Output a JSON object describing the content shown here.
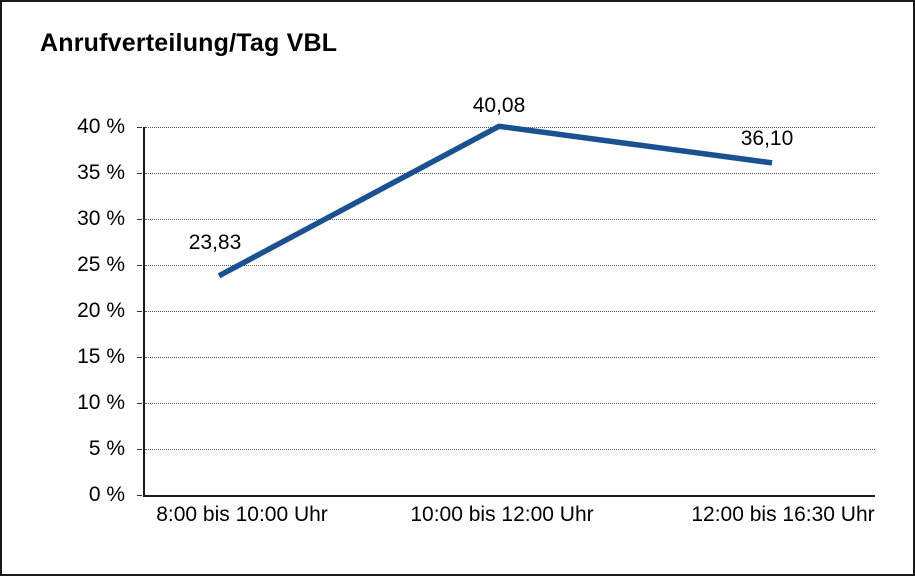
{
  "chart_data": {
    "type": "line",
    "title": "Anrufverteilung/Tag VBL",
    "categories": [
      "8:00 bis 10:00 Uhr",
      "10:00 bis 12:00 Uhr",
      "12:00 bis 16:30 Uhr"
    ],
    "values": [
      23.83,
      40.08,
      36.1
    ],
    "data_labels": [
      "23,83",
      "40,08",
      "36,10"
    ],
    "xlabel": "",
    "ylabel": "",
    "ylim": [
      0,
      40
    ],
    "ytick_step": 5,
    "ytick_labels": [
      "0 %",
      "5 %",
      "10 %",
      "15 %",
      "20 %",
      "25 %",
      "30 %",
      "35 %",
      "40 %"
    ],
    "grid": "horizontal-dotted",
    "legend": "none",
    "line_color": "#1a5291",
    "text_color": "#000000",
    "background_color": "#ffffff",
    "border_color": "#1a1a1a"
  }
}
